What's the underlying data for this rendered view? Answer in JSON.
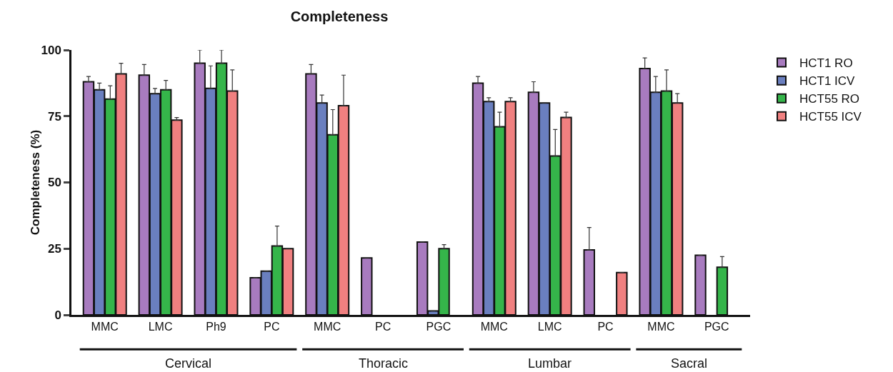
{
  "chart_data": {
    "type": "bar",
    "title": "Completeness",
    "ylabel": "Completeness (%)",
    "categories": [
      "MMC",
      "LMC",
      "Ph9",
      "PC",
      "MMC",
      "PC",
      "PGC",
      "MMC",
      "LMC",
      "PC",
      "MMC",
      "PGC"
    ],
    "series": [
      {
        "name": "HCT1 RO",
        "color": "#a87bbf",
        "values": [
          88,
          90.5,
          95,
          14,
          91,
          21.5,
          27.5,
          87.5,
          84,
          24.5,
          93,
          22.5
        ],
        "errors": [
          [
            88,
            90
          ],
          [
            90.5,
            94.5
          ],
          [
            95,
            100
          ],
          null,
          [
            91,
            94.5
          ],
          null,
          null,
          [
            87.5,
            90
          ],
          [
            84,
            88
          ],
          [
            24.5,
            33
          ],
          [
            93,
            97
          ],
          null
        ]
      },
      {
        "name": "HCT1 ICV",
        "color": "#6a7fbf",
        "values": [
          85,
          83.5,
          85.5,
          16.5,
          80,
          null,
          1.5,
          80.5,
          80,
          null,
          84,
          null
        ],
        "errors": [
          [
            85,
            87.5
          ],
          [
            83.5,
            85.5
          ],
          [
            85.5,
            94
          ],
          null,
          [
            80,
            83
          ],
          null,
          null,
          [
            80.5,
            82
          ],
          null,
          null,
          [
            84,
            90
          ],
          null
        ]
      },
      {
        "name": "HCT55 RO",
        "color": "#35b54a",
        "values": [
          81.5,
          85,
          95,
          26,
          68,
          null,
          25,
          71,
          60,
          null,
          84.5,
          18
        ],
        "errors": [
          [
            81.5,
            86.5
          ],
          [
            85,
            88.5
          ],
          [
            95,
            100
          ],
          [
            26,
            33.5
          ],
          [
            68,
            77.5
          ],
          null,
          [
            25,
            26.5
          ],
          [
            71,
            76.5
          ],
          [
            60,
            70
          ],
          null,
          [
            84.5,
            92.5
          ],
          [
            18,
            22
          ]
        ]
      },
      {
        "name": "HCT55 ICV",
        "color": "#f08080",
        "values": [
          91,
          73.5,
          84.5,
          25,
          79,
          null,
          null,
          80.5,
          74.5,
          16,
          80,
          null
        ],
        "errors": [
          [
            91,
            95
          ],
          [
            73.5,
            74.5
          ],
          [
            84.5,
            92.5
          ],
          null,
          [
            79,
            90.5
          ],
          null,
          null,
          [
            80.5,
            82
          ],
          [
            74.5,
            76.5
          ],
          null,
          [
            80,
            83.5
          ],
          null
        ]
      }
    ],
    "annotations": [
      "Cervical",
      "Thoracic",
      "Lumbar",
      "Sacral"
    ],
    "ylim": [
      0,
      100
    ],
    "yticks": [
      0,
      25,
      50,
      75,
      100
    ],
    "grid": false,
    "legend": "top right"
  }
}
